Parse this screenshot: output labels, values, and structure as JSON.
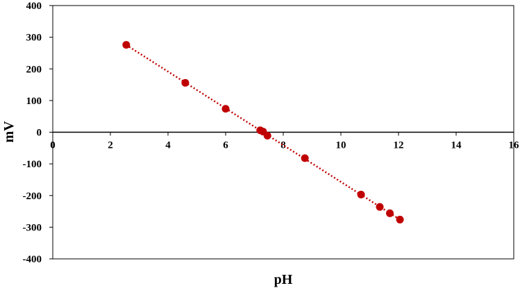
{
  "chart_data": {
    "type": "scatter",
    "title": "",
    "xlabel": "pH",
    "ylabel": "mV",
    "xlim": [
      0,
      16
    ],
    "ylim": [
      -400,
      400
    ],
    "x_ticks": [
      0,
      2,
      4,
      6,
      8,
      10,
      12,
      14,
      16
    ],
    "y_ticks": [
      400,
      300,
      200,
      100,
      0,
      -100,
      -200,
      -300,
      -400
    ],
    "grid": false,
    "legend": "none",
    "x_axis_crosses_at_y": 0,
    "series": [
      {
        "marker_color": "#c00000",
        "trendline": "linear, dotted",
        "points": [
          {
            "x": 2.55,
            "y": 276
          },
          {
            "x": 4.6,
            "y": 156
          },
          {
            "x": 6.0,
            "y": 74
          },
          {
            "x": 7.2,
            "y": 6
          },
          {
            "x": 7.3,
            "y": 2
          },
          {
            "x": 7.45,
            "y": -11
          },
          {
            "x": 8.75,
            "y": -82
          },
          {
            "x": 10.7,
            "y": -197
          },
          {
            "x": 11.35,
            "y": -236
          },
          {
            "x": 11.7,
            "y": -256
          },
          {
            "x": 12.05,
            "y": -276
          }
        ]
      }
    ]
  }
}
